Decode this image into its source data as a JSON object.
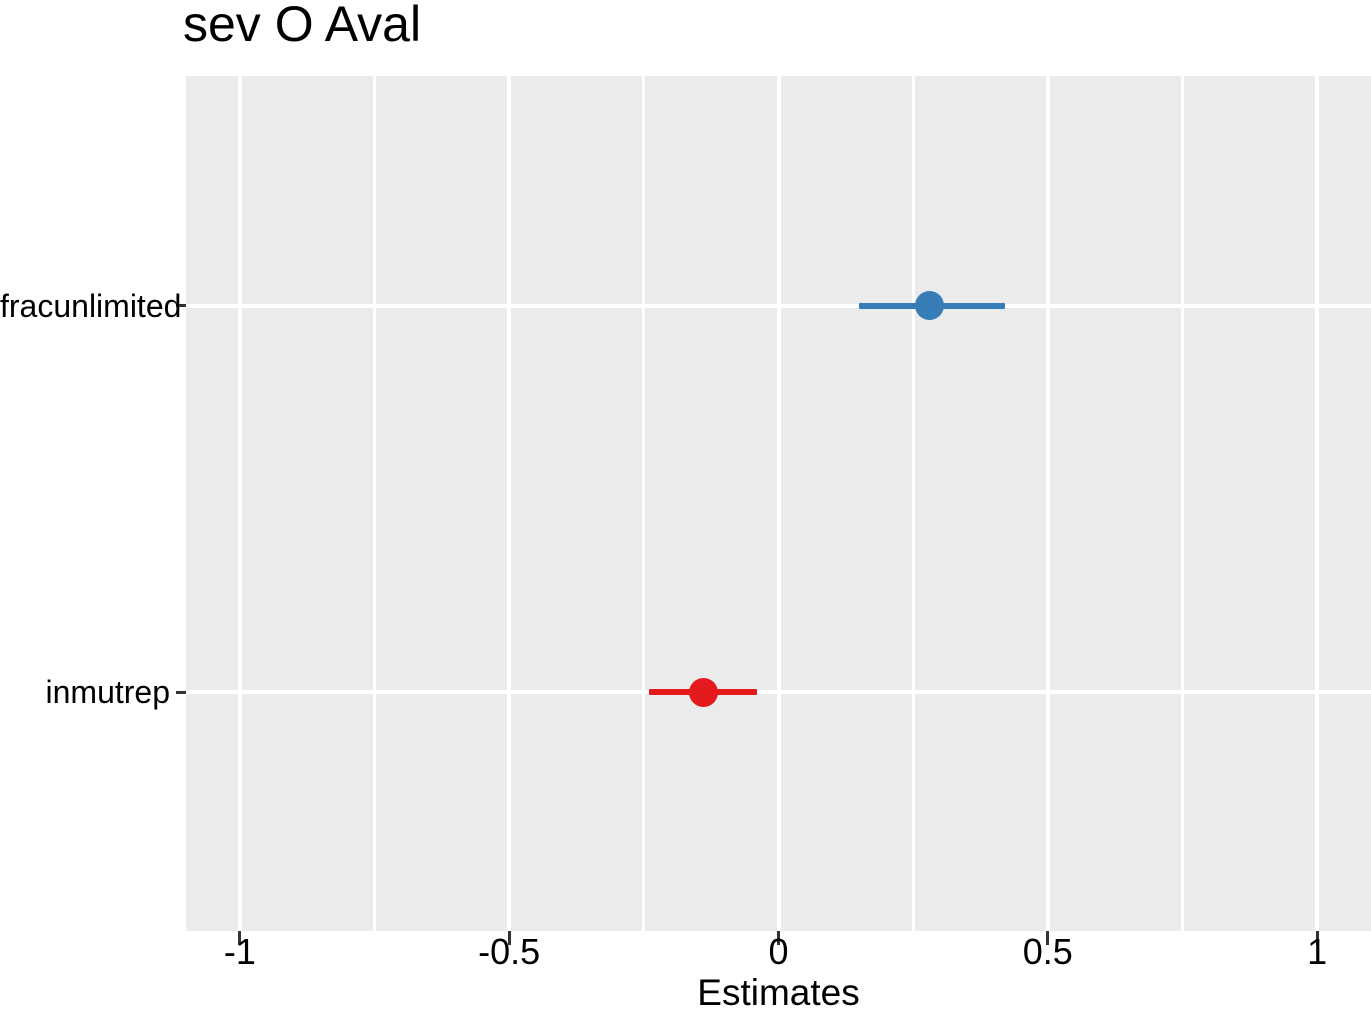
{
  "chart_data": {
    "type": "scatter",
    "variant": "coefficient-dot-whisker-forest-plot",
    "title": "sev O Aval",
    "xlabel": "Estimates",
    "ylabel": "",
    "categories": [
      "fracunlimited",
      "inmutrep"
    ],
    "series": [
      {
        "name": "fracunlimited",
        "estimate": 0.28,
        "ci_low": 0.15,
        "ci_high": 0.42,
        "color": "#377EB8"
      },
      {
        "name": "inmutrep",
        "estimate": -0.14,
        "ci_low": -0.24,
        "ci_high": -0.04,
        "color": "#E41A1C"
      }
    ],
    "x_ticks": [
      {
        "value": -1,
        "label": "-1"
      },
      {
        "value": -0.5,
        "label": "-0.5"
      },
      {
        "value": 0,
        "label": "0"
      },
      {
        "value": 0.5,
        "label": "0.5"
      },
      {
        "value": 1,
        "label": "1"
      }
    ],
    "x_minor_ticks": [
      -0.75,
      -0.25,
      0.25,
      0.75
    ],
    "xlim": [
      -1.1,
      1.1
    ],
    "legend_position": "none",
    "grid": "white major and minor vertical lines, white horizontal line per category",
    "colors": {
      "panel_background": "#EBEBEB",
      "gridline": "#FFFFFF",
      "tick": "#333333",
      "text": "#000000"
    }
  }
}
